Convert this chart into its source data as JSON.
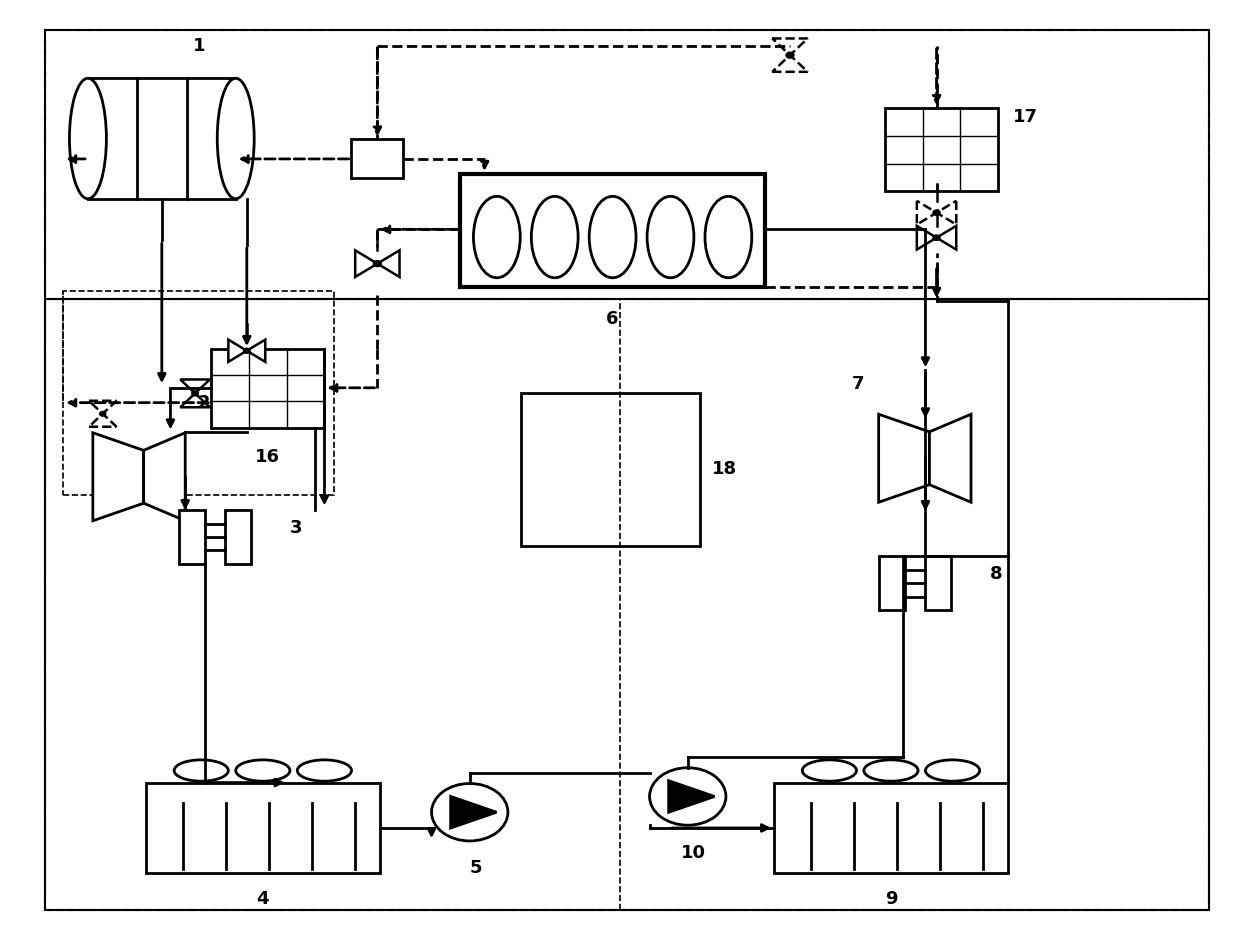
{
  "bg_color": "#ffffff",
  "lw": 2.0,
  "dlw": 2.0,
  "fs": 13,
  "figsize": [
    12.4,
    9.35
  ],
  "dpi": 100
}
